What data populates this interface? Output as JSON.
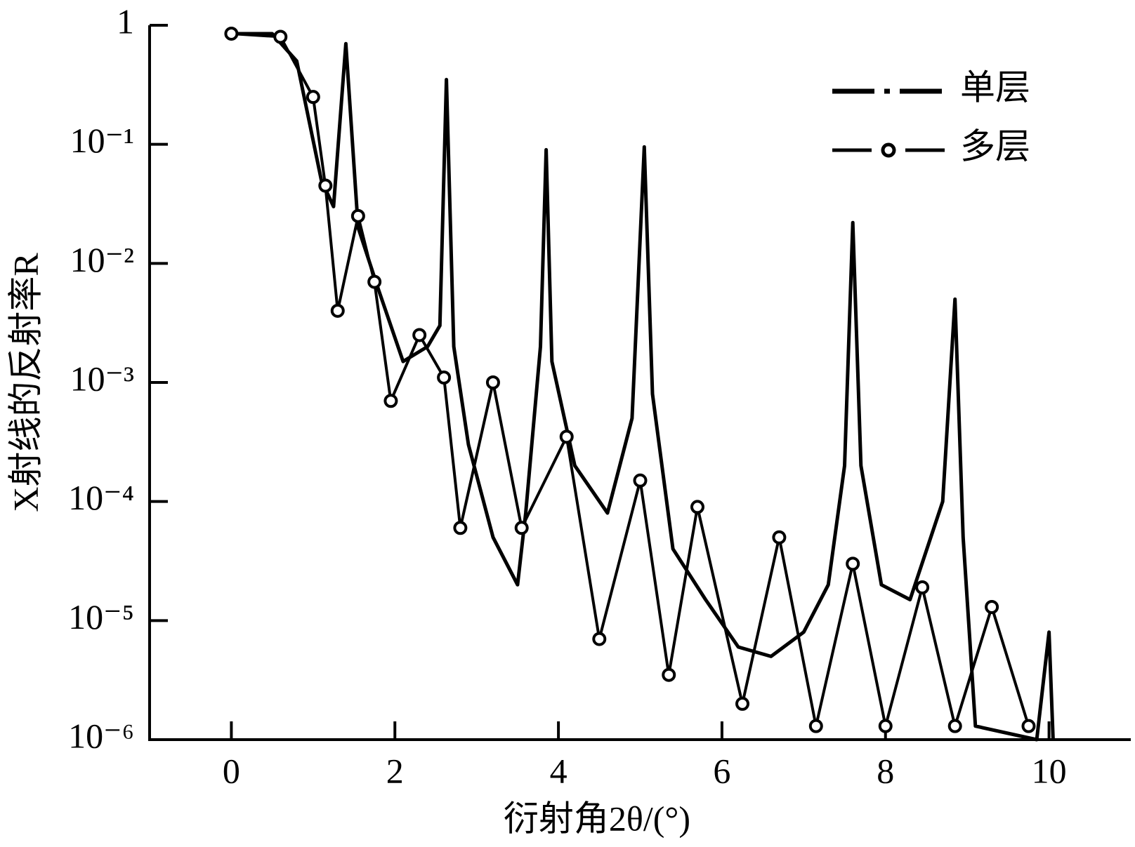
{
  "chart_data": {
    "type": "line",
    "x_label": "衍射角2θ/(°)",
    "y_label": "X射线的反射率R",
    "xlim": [
      -1,
      11
    ],
    "xticks": [
      0,
      2,
      4,
      6,
      8,
      10
    ],
    "ylim": [
      1e-06,
      1
    ],
    "yticks": [
      1,
      {
        "value": 0.1,
        "label": "10⁻¹"
      },
      {
        "value": 0.01,
        "label": "10⁻²"
      },
      {
        "value": 0.001,
        "label": "10⁻³"
      },
      {
        "value": 0.0001,
        "label": "10⁻⁴"
      },
      {
        "value": 1e-05,
        "label": "10⁻⁵"
      },
      {
        "value": 1e-06,
        "label": "10⁻⁶"
      }
    ],
    "log_y": true,
    "legend": "upper right",
    "series": [
      {
        "name": "单层",
        "color": "#000000",
        "x": [
          0,
          0.5,
          0.8,
          1.1,
          1.25,
          1.4,
          1.55,
          1.8,
          2.1,
          2.4,
          2.55,
          2.63,
          2.72,
          2.9,
          3.2,
          3.5,
          3.6,
          3.78,
          3.85,
          3.92,
          4.2,
          4.6,
          4.9,
          5.05,
          5.15,
          5.4,
          5.8,
          6.2,
          6.6,
          7.0,
          7.3,
          7.5,
          7.6,
          7.7,
          7.95,
          8.3,
          8.7,
          8.85,
          8.95,
          9.1,
          9.85,
          10.0,
          10.05
        ],
        "values": [
          0.85,
          0.85,
          0.5,
          0.05,
          0.03,
          0.7,
          0.02,
          0.006,
          0.0015,
          0.002,
          0.003,
          0.35,
          0.002,
          0.0003,
          5e-05,
          2e-05,
          8e-05,
          0.002,
          0.09,
          0.0015,
          0.0002,
          8e-05,
          0.0005,
          0.095,
          0.0008,
          4e-05,
          1.5e-05,
          6e-06,
          5e-06,
          8e-06,
          2e-05,
          0.0002,
          0.022,
          0.0002,
          2e-05,
          1.5e-05,
          0.0001,
          0.005,
          5e-05,
          1.3e-06,
          1e-06,
          8e-06,
          1e-06
        ]
      },
      {
        "name": "多层",
        "color": "#000000",
        "marker": "o",
        "x": [
          0,
          0.6,
          1.0,
          1.15,
          1.3,
          1.55,
          1.75,
          1.95,
          2.3,
          2.6,
          2.8,
          3.2,
          3.55,
          4.1,
          4.5,
          5.0,
          5.35,
          5.7,
          6.25,
          6.7,
          7.15,
          7.6,
          8.0,
          8.45,
          8.85,
          9.3,
          9.75
        ],
        "values": [
          0.85,
          0.8,
          0.25,
          0.045,
          0.004,
          0.025,
          0.007,
          0.0007,
          0.0025,
          0.0011,
          6e-05,
          0.001,
          6e-05,
          0.00035,
          7e-06,
          0.00015,
          3.5e-06,
          9e-05,
          2e-06,
          5e-05,
          1.3e-06,
          3e-05,
          1.3e-06,
          1.9e-05,
          1.3e-06,
          1.3e-05,
          1.3e-06
        ]
      }
    ]
  }
}
